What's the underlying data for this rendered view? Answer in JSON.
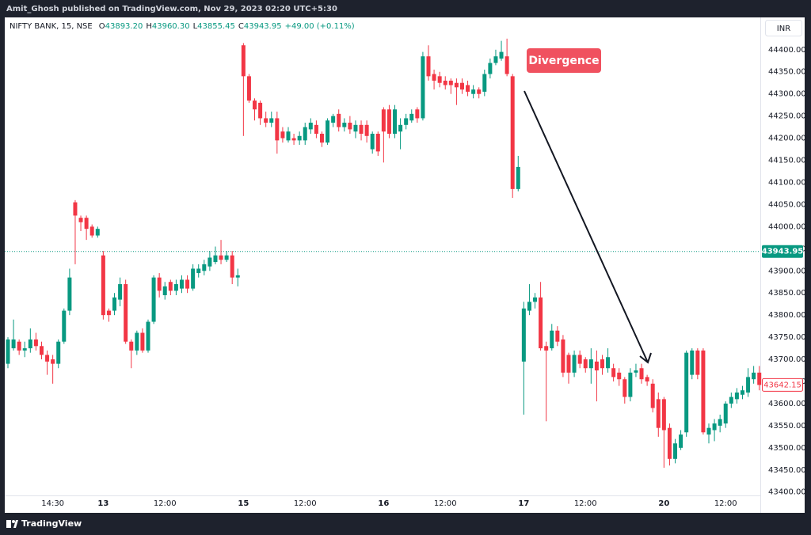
{
  "page": {
    "banner": "Amit_Ghosh published on TradingView.com, Nov 29, 2023 02:20 UTC+5:30",
    "brand": "TradingView"
  },
  "chart_data": {
    "type": "candlestick",
    "title": "NIFTY BANK, 15, NSE",
    "legend_values": [
      {
        "key": "O",
        "value": "43893.20"
      },
      {
        "key": "H",
        "value": "43960.30"
      },
      {
        "key": "L",
        "value": "43855.45"
      },
      {
        "key": "C",
        "value": "43943.95"
      }
    ],
    "change": "+49.00 (+0.11%)",
    "currency": "INR",
    "annotation": "Divergence",
    "annotation_color": "#f0515f",
    "up_color": "#089981",
    "down_color": "#f23645",
    "grid": false,
    "last_price": 43943.95,
    "current_price": 43642.15,
    "ylim": [
      43353,
      44473
    ],
    "yticks": [
      {
        "value": 43400,
        "label": "43400.00"
      },
      {
        "value": 43450,
        "label": "43450.00"
      },
      {
        "value": 43500,
        "label": "43500.00"
      },
      {
        "value": 43550,
        "label": "43550.00"
      },
      {
        "value": 43600,
        "label": "43600.00"
      },
      {
        "value": 43650,
        "label": "43650.00"
      },
      {
        "value": 43700,
        "label": "43700.00"
      },
      {
        "value": 43750,
        "label": "43750.00"
      },
      {
        "value": 43800,
        "label": "43800.00"
      },
      {
        "value": 43850,
        "label": "43850.00"
      },
      {
        "value": 43900,
        "label": "43900.00"
      },
      {
        "value": 43950,
        "label": "43950.00"
      },
      {
        "value": 44000,
        "label": "44000.00"
      },
      {
        "value": 44050,
        "label": "44050.00"
      },
      {
        "value": 44100,
        "label": "44100.00"
      },
      {
        "value": 44150,
        "label": "44150.00"
      },
      {
        "value": 44200,
        "label": "44200.00"
      },
      {
        "value": 44250,
        "label": "44250.00"
      },
      {
        "value": 44300,
        "label": "44300.00"
      },
      {
        "value": 44350,
        "label": "44350.00"
      },
      {
        "value": 44400,
        "label": "44400.00"
      }
    ],
    "categories": [
      null,
      null,
      null,
      null,
      null,
      null,
      null,
      null,
      "14:30",
      null,
      null,
      null,
      null,
      null,
      null,
      null,
      null,
      "13",
      null,
      null,
      null,
      null,
      null,
      null,
      null,
      null,
      null,
      null,
      "12:00",
      null,
      null,
      null,
      null,
      null,
      null,
      null,
      null,
      null,
      null,
      null,
      null,
      null,
      "15",
      null,
      null,
      null,
      null,
      null,
      null,
      null,
      null,
      null,
      null,
      "12:00",
      null,
      null,
      null,
      null,
      null,
      null,
      null,
      null,
      null,
      null,
      null,
      null,
      null,
      "16",
      null,
      null,
      null,
      null,
      null,
      null,
      null,
      null,
      null,
      null,
      "12:00",
      null,
      null,
      null,
      null,
      null,
      null,
      null,
      null,
      null,
      null,
      null,
      null,
      null,
      "17",
      null,
      null,
      null,
      null,
      null,
      null,
      null,
      null,
      null,
      null,
      "12:00",
      null,
      null,
      null,
      null,
      null,
      null,
      null,
      null,
      null,
      null,
      null,
      null,
      null,
      "20",
      null,
      null,
      null,
      null,
      null,
      null,
      null,
      null,
      null,
      null,
      "12:00",
      null,
      null,
      null,
      null,
      null,
      null
    ],
    "open": [
      43690,
      43725,
      43740,
      43720,
      43725,
      43745,
      43730,
      43710,
      43700,
      43690,
      43740,
      43810,
      44055,
      44020,
      44020,
      44000,
      43980,
      43935,
      43810,
      43810,
      43835,
      43870,
      43740,
      43720,
      43760,
      43720,
      43785,
      43885,
      43845,
      43875,
      43855,
      43860,
      43880,
      43860,
      43895,
      43900,
      43910,
      43920,
      43935,
      43925,
      43935,
      43885,
      44410,
      44340,
      44285,
      44280,
      44245,
      44235,
      44245,
      44215,
      44195,
      44200,
      44195,
      44195,
      44220,
      44230,
      44210,
      44190,
      44235,
      44255,
      44225,
      44235,
      44215,
      44230,
      44230,
      44175,
      44210,
      44265,
      44265,
      44210,
      44215,
      44230,
      44240,
      44265,
      44245,
      44385,
      44345,
      44340,
      44330,
      44330,
      44325,
      44325,
      44320,
      44300,
      44310,
      44305,
      44345,
      44370,
      44380,
      44385,
      44340,
      44085,
      43695,
      43810,
      43830,
      43840,
      43730,
      43725,
      43765,
      43745,
      43710,
      43670,
      43710,
      43700,
      43680,
      43695,
      43700,
      43680,
      43680,
      43670,
      43655,
      43615,
      43670,
      43680,
      43660,
      43645,
      43610,
      43610,
      43545,
      43475,
      43500,
      43535,
      43665,
      43720,
      43720,
      43530,
      43540,
      43550,
      43555,
      43600,
      43610,
      43620,
      43625,
      43655,
      43670
    ],
    "high": [
      43750,
      43790,
      43745,
      43740,
      43770,
      43760,
      43740,
      43720,
      43710,
      43745,
      43815,
      43905,
      44060,
      44025,
      44025,
      44005,
      44000,
      43945,
      43815,
      43850,
      43885,
      43880,
      43745,
      43765,
      43770,
      43790,
      43890,
      43895,
      43875,
      43880,
      43880,
      43890,
      43890,
      43915,
      43915,
      43925,
      43945,
      43955,
      43970,
      43945,
      43945,
      43905,
      44415,
      44345,
      44290,
      44285,
      44260,
      44260,
      44260,
      44225,
      44225,
      44210,
      44215,
      44235,
      44245,
      44240,
      44215,
      44245,
      44255,
      44265,
      44245,
      44250,
      44240,
      44240,
      44240,
      44215,
      44215,
      44270,
      44275,
      44275,
      44245,
      44255,
      44265,
      44270,
      44395,
      44410,
      44355,
      44350,
      44340,
      44335,
      44335,
      44335,
      44330,
      44320,
      44315,
      44355,
      44380,
      44400,
      44420,
      44425,
      44345,
      44160,
      43830,
      43870,
      43850,
      43875,
      43740,
      43780,
      43775,
      43755,
      43715,
      43720,
      43720,
      43705,
      43725,
      43720,
      43710,
      43725,
      43690,
      43680,
      43660,
      43680,
      43690,
      43690,
      43665,
      43655,
      43625,
      43615,
      43555,
      43520,
      43540,
      43720,
      43725,
      43725,
      43725,
      43555,
      43565,
      43575,
      43605,
      43625,
      43635,
      43640,
      43680,
      43685,
      43685
    ],
    "low": [
      43680,
      43720,
      43710,
      43705,
      43715,
      43720,
      43700,
      43665,
      43645,
      43680,
      43735,
      43800,
      43915,
      43990,
      43970,
      43975,
      43975,
      43790,
      43785,
      43800,
      43820,
      43735,
      43680,
      43710,
      43715,
      43715,
      43780,
      43840,
      43835,
      43845,
      43845,
      43850,
      43850,
      43855,
      43885,
      43890,
      43900,
      43915,
      43915,
      43920,
      43870,
      43865,
      44205,
      44280,
      44240,
      44230,
      44225,
      44225,
      44165,
      44190,
      44190,
      44185,
      44185,
      44185,
      44210,
      44200,
      44180,
      44185,
      44225,
      44215,
      44215,
      44210,
      44200,
      44195,
      44190,
      44165,
      44160,
      44145,
      44200,
      44200,
      44175,
      44220,
      44235,
      44235,
      44240,
      44330,
      44310,
      44315,
      44310,
      44300,
      44275,
      44300,
      44295,
      44290,
      44290,
      44295,
      44335,
      44365,
      44375,
      44340,
      44065,
      44080,
      43575,
      43800,
      43815,
      43720,
      43560,
      43720,
      43730,
      43660,
      43645,
      43660,
      43680,
      43670,
      43645,
      43605,
      43665,
      43670,
      43650,
      43640,
      43600,
      43605,
      43660,
      43645,
      43640,
      43580,
      43525,
      43455,
      43460,
      43465,
      43495,
      43525,
      43655,
      43655,
      43530,
      43510,
      43515,
      43535,
      43545,
      43590,
      43600,
      43610,
      43615,
      43645,
      43630
    ],
    "close": [
      43745,
      43745,
      43720,
      43725,
      43745,
      43730,
      43710,
      43695,
      43690,
      43740,
      43810,
      43885,
      44025,
      44010,
      43995,
      43980,
      43995,
      43800,
      43800,
      43840,
      43870,
      43740,
      43720,
      43760,
      43720,
      43785,
      43885,
      43855,
      43865,
      43855,
      43870,
      43880,
      43860,
      43905,
      43905,
      43915,
      43930,
      43935,
      43925,
      43935,
      43885,
      43890,
      44340,
      44285,
      44265,
      44245,
      44235,
      44245,
      44195,
      44200,
      44215,
      44195,
      44205,
      44225,
      44235,
      44210,
      44190,
      44240,
      44250,
      44225,
      44235,
      44220,
      44230,
      44210,
      44205,
      44210,
      44170,
      44215,
      44210,
      44265,
      44230,
      44245,
      44255,
      44245,
      44385,
      44340,
      44330,
      44325,
      44320,
      44320,
      44315,
      44310,
      44305,
      44310,
      44300,
      44345,
      44370,
      44385,
      44395,
      44345,
      44085,
      44135,
      43815,
      43830,
      43840,
      43725,
      43720,
      43765,
      43740,
      43670,
      43670,
      43710,
      43690,
      43680,
      43700,
      43675,
      43680,
      43705,
      43660,
      43655,
      43615,
      43670,
      43675,
      43655,
      43650,
      43590,
      43545,
      43540,
      43475,
      43510,
      43530,
      43715,
      43720,
      43665,
      43535,
      43545,
      43555,
      43565,
      43600,
      43615,
      43625,
      43630,
      43660,
      43670,
      43642.15
    ]
  }
}
